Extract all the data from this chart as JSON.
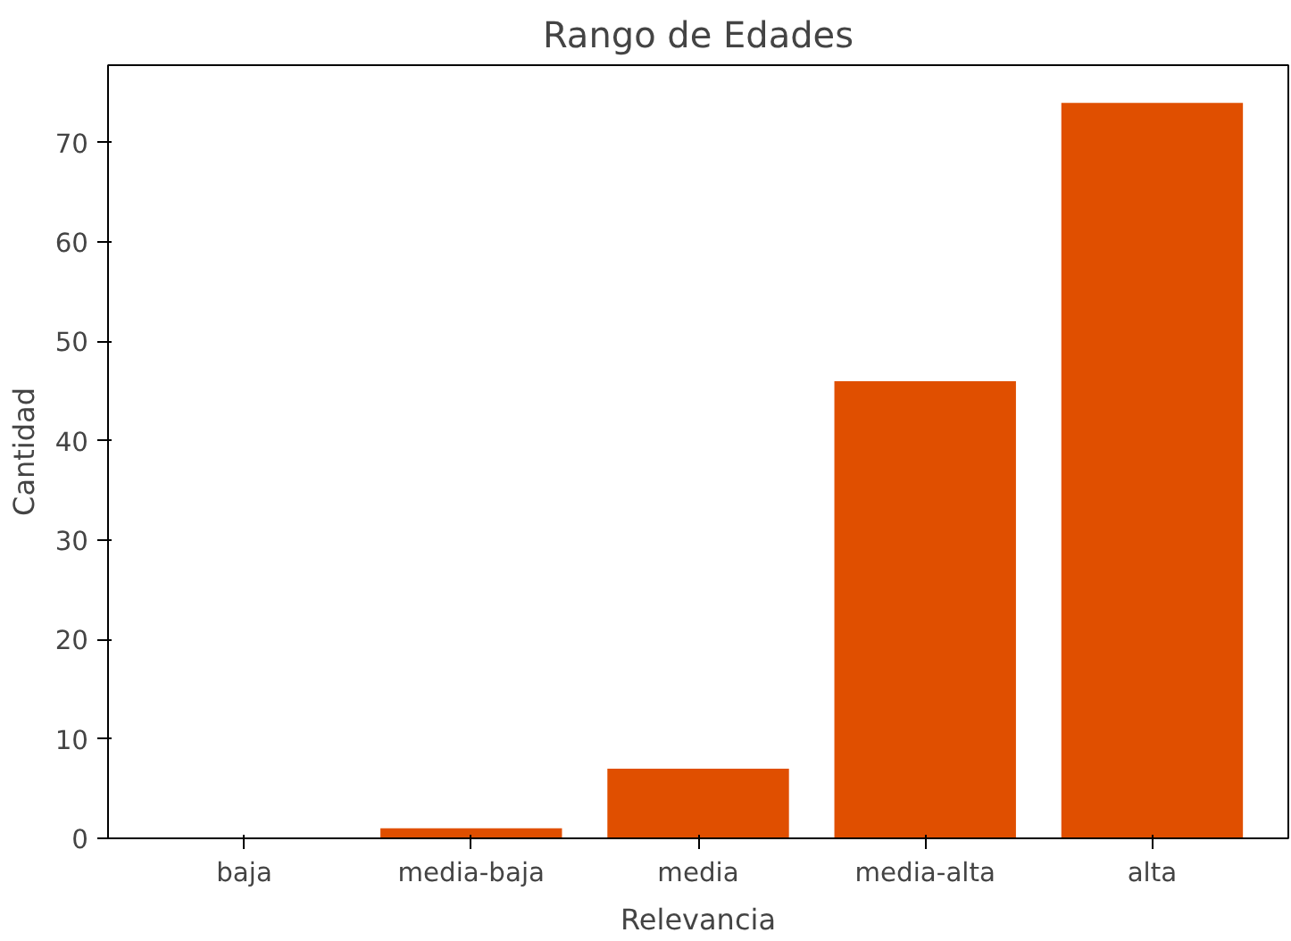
{
  "chart_data": {
    "type": "bar",
    "title": "Rango de Edades",
    "xlabel": "Relevancia",
    "ylabel": "Cantidad",
    "categories": [
      "baja",
      "media-baja",
      "media",
      "media-alta",
      "alta"
    ],
    "values": [
      0,
      1,
      7,
      46,
      74
    ],
    "color": "#e04f00",
    "ylim": [
      0,
      77.8
    ],
    "yticks": [
      0,
      10,
      20,
      30,
      40,
      50,
      60,
      70
    ],
    "grid": false
  }
}
